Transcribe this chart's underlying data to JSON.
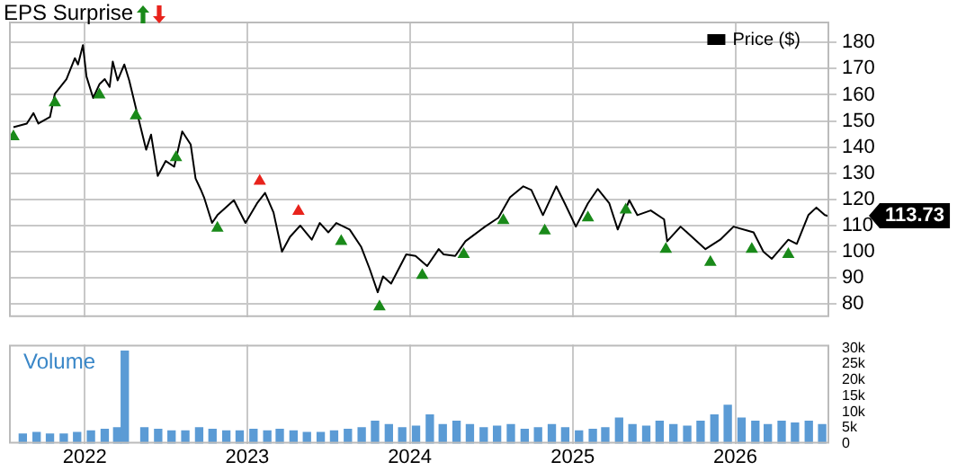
{
  "chart_data": [
    {
      "type": "line",
      "title": "EPS Surprise",
      "xlim": [
        "2021-07-15",
        "2026-07-31"
      ],
      "xticks": [
        {
          "value": "2022-01-01",
          "label": null
        },
        {
          "value": "2023-01-01",
          "label": null
        },
        {
          "value": "2024-01-01",
          "label": null
        },
        {
          "value": "2025-01-01",
          "label": null
        },
        {
          "value": "2026-01-01",
          "label": null
        }
      ],
      "ylim": [
        75,
        188
      ],
      "yticks": [
        80,
        90,
        100,
        110,
        120,
        130,
        140,
        150,
        160,
        170,
        180
      ],
      "tick_labels": "y",
      "grid": true,
      "legend": "top right",
      "annotations": [
        {
          "text": "113.73",
          "x": "2026-07-28",
          "y": 113.73
        }
      ],
      "series": [
        {
          "name": "Price ($)",
          "type": "line",
          "color": "#000000",
          "marker": "none",
          "x": [
            "2021-07-25",
            "2021-08-24",
            "2021-09-08",
            "2021-09-19",
            "2021-10-15",
            "2021-10-26",
            "2021-11-21",
            "2021-12-10",
            "2021-12-17",
            "2021-12-28",
            "2022-01-05",
            "2022-01-20",
            "2022-02-03",
            "2022-02-15",
            "2022-02-26",
            "2022-03-05",
            "2022-03-16",
            "2022-03-31",
            "2022-04-11",
            "2022-04-26",
            "2022-05-19",
            "2022-05-30",
            "2022-06-14",
            "2022-07-02",
            "2022-07-21",
            "2022-08-08",
            "2022-08-27",
            "2022-09-07",
            "2022-09-18",
            "2022-09-26",
            "2022-10-14",
            "2022-10-26",
            "2022-12-02",
            "2022-12-28",
            "2023-01-23",
            "2023-02-10",
            "2023-03-01",
            "2023-03-20",
            "2023-04-07",
            "2023-04-30",
            "2023-05-26",
            "2023-06-13",
            "2023-07-02",
            "2023-07-20",
            "2023-08-19",
            "2023-09-14",
            "2023-10-03",
            "2023-10-21",
            "2023-11-02",
            "2023-11-20",
            "2023-12-24",
            "2024-01-14",
            "2024-02-09",
            "2024-03-06",
            "2024-03-17",
            "2024-04-12",
            "2024-05-05",
            "2024-06-18",
            "2024-07-18",
            "2024-08-13",
            "2024-09-12",
            "2024-09-30",
            "2024-10-26",
            "2024-11-25",
            "2024-12-14",
            "2025-01-08",
            "2025-02-04",
            "2025-02-26",
            "2025-03-24",
            "2025-04-12",
            "2025-05-08",
            "2025-05-26",
            "2025-06-25",
            "2025-07-25",
            "2025-08-01",
            "2025-08-31",
            "2025-10-26",
            "2025-11-28",
            "2025-12-28",
            "2026-02-11",
            "2026-03-05",
            "2026-03-24",
            "2026-04-30",
            "2026-05-19",
            "2026-06-14",
            "2026-07-02",
            "2026-07-21",
            "2026-07-28"
          ],
          "values": [
            147.6,
            149,
            153,
            149,
            151.5,
            160.4,
            166,
            174,
            171.6,
            179,
            167,
            158.8,
            164,
            166,
            163,
            172.7,
            165.5,
            171.6,
            165.5,
            154.9,
            139,
            144.8,
            129,
            134.7,
            132.5,
            146,
            141,
            128,
            124,
            120.8,
            111,
            114,
            119.7,
            111,
            118.5,
            122.5,
            115,
            100,
            105.7,
            110,
            104.6,
            111,
            107.4,
            111,
            108.5,
            101.8,
            93.4,
            84.5,
            90.6,
            87.8,
            99,
            98.4,
            94.5,
            101,
            99,
            98.4,
            104,
            109.6,
            113,
            120.8,
            125,
            123.6,
            114,
            125,
            118.5,
            109.6,
            118.5,
            124,
            118.5,
            108.5,
            119.7,
            114,
            115.8,
            112.4,
            104,
            109.6,
            101,
            104.6,
            109.6,
            107.4,
            100,
            97.3,
            104.6,
            103,
            114,
            116.9,
            114,
            113.7
          ]
        },
        {
          "type": "scatter",
          "color": "#1a8a1a",
          "marker": "triangle",
          "x": [
            "2021-07-25",
            "2021-10-26",
            "2022-02-03",
            "2022-04-26",
            "2022-07-25",
            "2022-10-26",
            "2023-07-31",
            "2023-10-25",
            "2024-01-29",
            "2024-05-01",
            "2024-07-29",
            "2024-10-30",
            "2025-02-04",
            "2025-04-30",
            "2025-07-29",
            "2025-11-06",
            "2026-02-07",
            "2026-04-30"
          ],
          "values": [
            144,
            157,
            160,
            152,
            136,
            109,
            104,
            79,
            91,
            99,
            112,
            108,
            113,
            116,
            101,
            96,
            101,
            99
          ]
        },
        {
          "type": "scatter",
          "color": "#e8231c",
          "marker": "triangle",
          "x": [
            "2023-01-29",
            "2023-04-26"
          ],
          "values": [
            127,
            115.5
          ]
        }
      ]
    },
    {
      "type": "bar",
      "ylabel": "Volume",
      "xlim": [
        "2021-07-15",
        "2026-07-31"
      ],
      "xticks": [
        {
          "value": "2022-01-01",
          "label": "2022"
        },
        {
          "value": "2023-01-01",
          "label": "2023"
        },
        {
          "value": "2024-01-01",
          "label": "2024"
        },
        {
          "value": "2025-01-01",
          "label": "2025"
        },
        {
          "value": "2026-01-01",
          "label": "2026"
        }
      ],
      "ylim": [
        0,
        31000
      ],
      "yticks": [
        0,
        {
          "value": 5000,
          "label": "5k"
        },
        {
          "value": 10000,
          "label": "10k"
        },
        {
          "value": 15000,
          "label": "15k"
        },
        {
          "value": 20000,
          "label": "20k"
        },
        {
          "value": 25000,
          "label": "25k"
        },
        {
          "value": 30000,
          "label": "30k"
        }
      ],
      "grid": "x",
      "series": [
        {
          "color": "#5b9bd5",
          "x": [
            "2021-08-15",
            "2021-09-15",
            "2021-10-15",
            "2021-11-15",
            "2021-12-15",
            "2022-01-15",
            "2022-02-15",
            "2022-03-15",
            "2022-04-01",
            "2022-05-15",
            "2022-06-15",
            "2022-07-15",
            "2022-08-15",
            "2022-09-15",
            "2022-10-15",
            "2022-11-15",
            "2022-12-15",
            "2023-01-15",
            "2023-02-15",
            "2023-03-15",
            "2023-04-15",
            "2023-05-15",
            "2023-06-15",
            "2023-07-15",
            "2023-08-15",
            "2023-09-15",
            "2023-10-15",
            "2023-11-15",
            "2023-12-15",
            "2024-01-15",
            "2024-02-15",
            "2024-03-15",
            "2024-04-15",
            "2024-05-15",
            "2024-06-15",
            "2024-07-15",
            "2024-08-15",
            "2024-09-15",
            "2024-10-15",
            "2024-11-15",
            "2024-12-15",
            "2025-01-15",
            "2025-02-15",
            "2025-03-15",
            "2025-04-15",
            "2025-05-15",
            "2025-06-15",
            "2025-07-15",
            "2025-08-15",
            "2025-09-15",
            "2025-10-15",
            "2025-11-15",
            "2025-12-15",
            "2026-01-15",
            "2026-02-15",
            "2026-03-15",
            "2026-04-15",
            "2026-05-15",
            "2026-06-15",
            "2026-07-15"
          ],
          "values": [
            3000,
            3500,
            3000,
            3000,
            3500,
            4000,
            4500,
            5000,
            29000,
            5000,
            4500,
            4000,
            4000,
            5000,
            4500,
            4000,
            4000,
            4500,
            4000,
            4500,
            4000,
            3500,
            3500,
            4000,
            4500,
            5000,
            7000,
            6000,
            5000,
            5500,
            9000,
            6000,
            7000,
            6000,
            5000,
            5500,
            6000,
            4500,
            5000,
            6000,
            5000,
            4000,
            4500,
            5000,
            8000,
            6000,
            5500,
            7000,
            6000,
            5500,
            7000,
            9000,
            12000,
            8000,
            7000,
            6000,
            7000,
            6500,
            7000,
            6000
          ]
        }
      ]
    }
  ]
}
